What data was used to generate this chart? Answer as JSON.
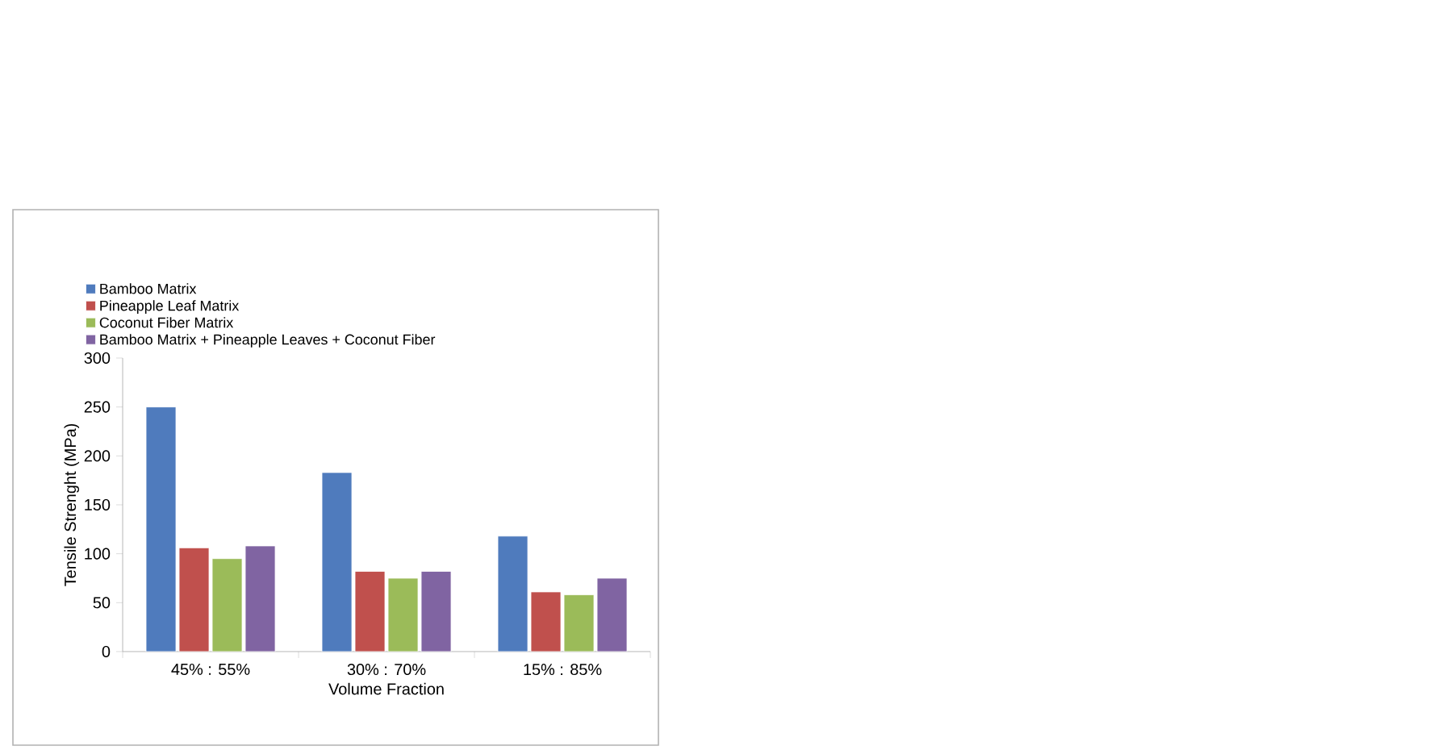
{
  "chart_data": {
    "type": "bar",
    "xlabel": "Volume Fraction",
    "ylabel": "Tensile Strenght (MPa)",
    "categories": [
      "45% : 55%",
      "30% : 70%",
      "15% : 85%"
    ],
    "series": [
      {
        "name": "Bamboo Matrix",
        "color": "#4f7bbd",
        "values": [
          250,
          183,
          118
        ]
      },
      {
        "name": "Pineapple Leaf Matrix",
        "color": "#c0504d",
        "values": [
          106,
          82,
          61
        ]
      },
      {
        "name": "Coconut Fiber Matrix",
        "color": "#9bbb59",
        "values": [
          95,
          75,
          58
        ]
      },
      {
        "name": "Bamboo Matrix + Pineapple Leaves + Coconut Fiber",
        "color": "#8064a2",
        "values": [
          108,
          82,
          75
        ]
      }
    ],
    "ylim": [
      0,
      300
    ],
    "yticks": [
      0,
      50,
      100,
      150,
      200,
      250,
      300
    ],
    "legend": "top"
  }
}
